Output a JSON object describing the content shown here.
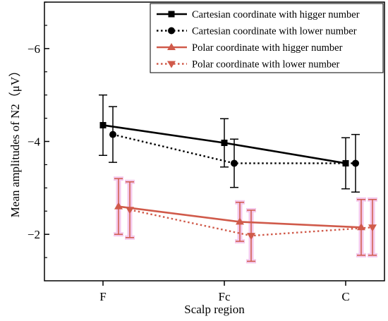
{
  "chart_data": {
    "type": "line",
    "categories": [
      "F",
      "Fc",
      "C"
    ],
    "xlabel": "Scalp region",
    "ylabel": "Mean amplitudes of N2（μV）",
    "ylim": [
      -1,
      -7
    ],
    "yticks": [
      -6,
      -4,
      -2
    ],
    "ytick_labels": [
      "−6",
      "−4",
      "−2"
    ],
    "legend_position": "top-right",
    "series": [
      {
        "name": "Cartesian coordinate with higger number",
        "values": [
          -4.35,
          -3.97,
          -3.53
        ],
        "err": [
          0.65,
          0.52,
          0.55
        ],
        "color": "#000000",
        "linestyle": "solid",
        "marker": "square"
      },
      {
        "name": "Cartesian coordinate with lower number",
        "values": [
          -4.15,
          -3.53,
          -3.53
        ],
        "err": [
          0.6,
          0.52,
          0.62
        ],
        "color": "#000000",
        "linestyle": "dotted",
        "marker": "circle"
      },
      {
        "name": "Polar coordinate with higger number",
        "values": [
          -2.6,
          -2.27,
          -2.15
        ],
        "err": [
          0.6,
          0.42,
          0.6
        ],
        "color": "#d05a4a",
        "linestyle": "solid",
        "marker": "triangle-up"
      },
      {
        "name": "Polar coordinate with lower number",
        "values": [
          -2.53,
          -1.97,
          -2.15
        ],
        "err": [
          0.6,
          0.55,
          0.6
        ],
        "color": "#d05a4a",
        "linestyle": "dotted",
        "marker": "triangle-down"
      }
    ]
  }
}
